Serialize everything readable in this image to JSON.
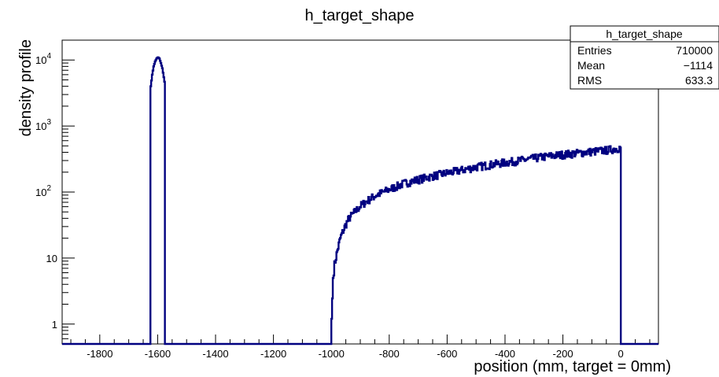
{
  "chart_data": {
    "type": "histogram",
    "title": "h_target_shape",
    "xlabel": "position (mm, target = 0mm)",
    "ylabel": "density profile",
    "xlim": [
      -1930,
      130
    ],
    "ylim": [
      0.5,
      20000
    ],
    "log_y": true,
    "line_color": "#000080",
    "x_ticks": [
      "-1800",
      "-1600",
      "-1400",
      "-1200",
      "-1000",
      "-800",
      "-600",
      "-400",
      "-200",
      "0"
    ],
    "x_tick_values": [
      -1800,
      -1600,
      -1400,
      -1200,
      -1000,
      -800,
      -600,
      -400,
      -200,
      0
    ],
    "y_ticks": [
      {
        "value": 1,
        "base": "1",
        "exp": ""
      },
      {
        "value": 10,
        "base": "10",
        "exp": ""
      },
      {
        "value": 100,
        "base": "10",
        "exp": "2"
      },
      {
        "value": 1000,
        "base": "10",
        "exp": "3"
      },
      {
        "value": 10000,
        "base": "10",
        "exp": "4"
      }
    ],
    "peak_profile": {
      "x": [
        -1625,
        -1620,
        -1615,
        -1610,
        -1605,
        -1600,
        -1595,
        -1590,
        -1585,
        -1580,
        -1575
      ],
      "y": [
        4000,
        6000,
        8000,
        9500,
        10500,
        11000,
        10500,
        9000,
        7500,
        5500,
        4000
      ]
    },
    "tail_profile": {
      "x": [
        -1000,
        -995,
        -990,
        -980,
        -970,
        -960,
        -950,
        -940,
        -920,
        -900,
        -880,
        -850,
        -800,
        -750,
        -700,
        -650,
        -600,
        -550,
        -500,
        -450,
        -400,
        -350,
        -300,
        -250,
        -200,
        -150,
        -100,
        -50,
        -10,
        0
      ],
      "y": [
        1.2,
        5,
        8,
        13,
        20,
        26,
        33,
        40,
        50,
        62,
        72,
        88,
        110,
        135,
        155,
        175,
        195,
        215,
        240,
        260,
        280,
        300,
        325,
        350,
        370,
        390,
        410,
        430,
        460,
        480
      ]
    },
    "stats_box": {
      "title": "h_target_shape",
      "rows": [
        {
          "label": "Entries",
          "value": "710000"
        },
        {
          "label": "Mean",
          "value": "−1114"
        },
        {
          "label": "RMS",
          "value": "633.3"
        }
      ]
    }
  }
}
